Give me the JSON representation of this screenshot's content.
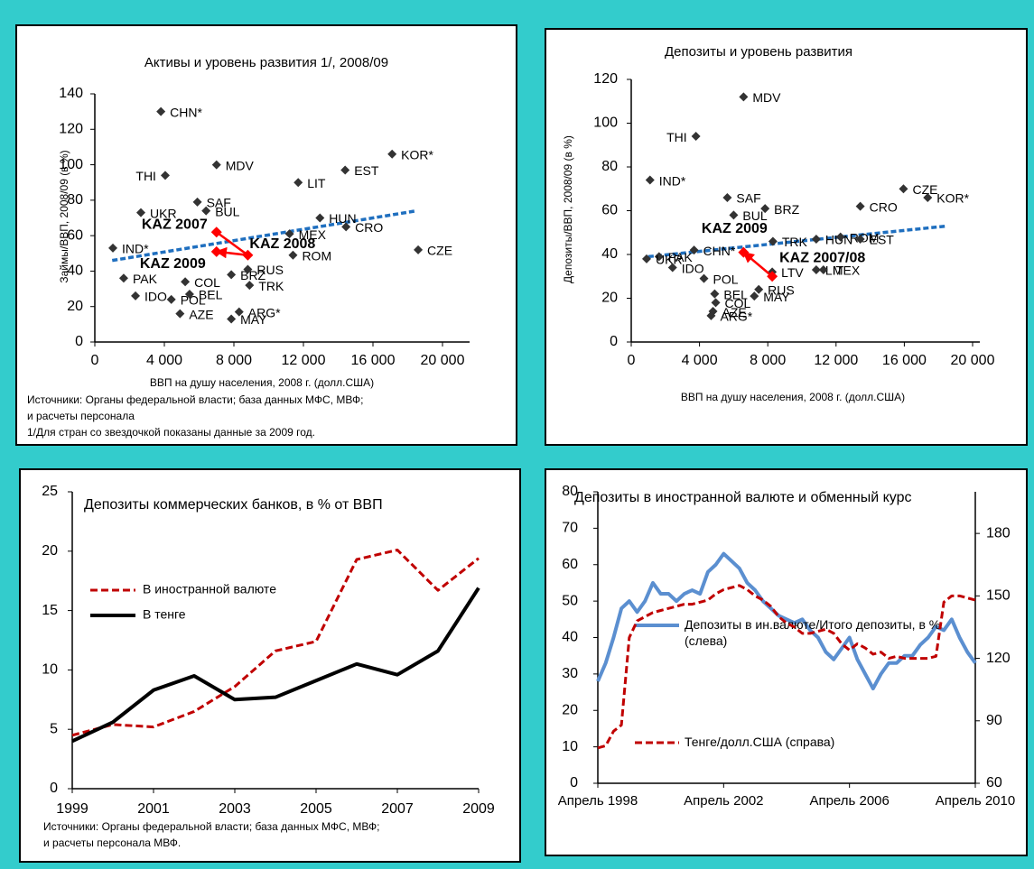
{
  "chart_data": [
    {
      "type": "scatter",
      "title": "Активы и уровень развития 1/, 2008/09",
      "ylabel": "Займы/ВВП, 2008/09 (в %)",
      "xlabel": "ВВП на душу населения, 2008 г. (долл.США)",
      "notes": [
        "Источники: Органы федеральной власти; база данных МФС, МВФ;",
        "и расчеты персонала",
        "1/Для стран со звездочкой показаны данные за 2009 год."
      ],
      "xlim": [
        0,
        20000
      ],
      "xticks": [
        0,
        {
          "value": 4000,
          "label": "4 000"
        },
        {
          "value": 8000,
          "label": "8 000"
        },
        {
          "value": 12000,
          "label": "12 000"
        },
        {
          "value": 16000,
          "label": "16 000"
        },
        {
          "value": 20000,
          "label": "20 000"
        }
      ],
      "ylim": [
        0,
        140
      ],
      "yticks": [
        0,
        20,
        40,
        60,
        80,
        100,
        120,
        140
      ],
      "series": [
        {
          "color": "#333333",
          "point_labels": [
            "CHN*",
            "THI",
            "MDV",
            "SAF",
            "BUL",
            "UKR",
            "LIT",
            "EST",
            "KOR*",
            "HUN",
            "CRO",
            "MEX",
            "ROM",
            "CZE",
            "IND*",
            "PAK",
            "IDO",
            "COL",
            "POL",
            "AZE",
            "BEL",
            "BRZ",
            "RUS",
            "TRK",
            "ARG*",
            "MAY"
          ],
          "x": [
            3800,
            4050,
            7000,
            5900,
            6400,
            2650,
            11700,
            14400,
            17100,
            12950,
            14450,
            11200,
            11400,
            18600,
            1040,
            1660,
            2340,
            5200,
            4400,
            4900,
            5450,
            7850,
            8800,
            8900,
            8300,
            7850
          ],
          "values": [
            130,
            94,
            100,
            79,
            74,
            73,
            90,
            97,
            106,
            70,
            65,
            61,
            49,
            52,
            53,
            36,
            26,
            34,
            24,
            16,
            27,
            38,
            41,
            32,
            17,
            13
          ]
        },
        {
          "color": "#ff0000",
          "point_labels": [
            "KAZ 2007",
            "KAZ 2008",
            "KAZ 2009"
          ],
          "x": [
            7000,
            8800,
            7000
          ],
          "values": [
            62,
            49,
            51
          ]
        }
      ],
      "trend": {
        "color": "#1f6fbf",
        "x": [
          1000,
          18500
        ],
        "values": [
          46,
          74
        ]
      }
    },
    {
      "type": "scatter",
      "title": "Депозиты и уровень развития",
      "ylabel": "Депозиты/ВВП, 2008/09 (в %)",
      "xlabel": "ВВП на душу населения, 2008 г. (долл.США)",
      "xlim": [
        0,
        20000
      ],
      "xticks": [
        0,
        {
          "value": 4000,
          "label": "4 000"
        },
        {
          "value": 8000,
          "label": "8 000"
        },
        {
          "value": 12000,
          "label": "12 000"
        },
        {
          "value": 16000,
          "label": "16 000"
        },
        {
          "value": 20000,
          "label": "20 000"
        }
      ],
      "ylim": [
        0,
        120
      ],
      "yticks": [
        0,
        20,
        40,
        60,
        80,
        100,
        120
      ],
      "series": [
        {
          "color": "#333333",
          "point_labels": [
            "MDV",
            "THI",
            "IND*",
            "SAF",
            "BUL",
            "BRZ",
            "TRK",
            "CRO",
            "CZE",
            "KOR*",
            "HUN",
            "ROM",
            "EST",
            "PAK",
            "CHN*",
            "UKR",
            "IDO",
            "POL",
            "LTV",
            "LIT",
            "MEX",
            "BEL",
            "COL",
            "ARG*",
            "AZE",
            "RUS",
            "MAY"
          ],
          "x": [
            6580,
            3790,
            1100,
            5630,
            6000,
            7840,
            8300,
            13420,
            15950,
            17370,
            10840,
            12260,
            13420,
            1630,
            3680,
            900,
            2420,
            4260,
            8260,
            10840,
            11260,
            4890,
            4950,
            4680,
            4790,
            7470,
            7210
          ],
          "values": [
            112,
            94,
            74,
            66,
            58,
            61,
            46,
            62,
            70,
            66,
            47,
            48,
            47,
            39,
            42,
            38,
            34,
            29,
            32,
            33,
            33,
            22,
            18,
            12,
            14,
            24,
            21
          ]
        },
        {
          "color": "#ff0000",
          "point_labels": [
            "KAZ 2007/08",
            "KAZ 2009"
          ],
          "x": [
            8260,
            6580
          ],
          "values": [
            30,
            41
          ]
        }
      ],
      "trend": {
        "color": "#1f6fbf",
        "x": [
          1000,
          18500
        ],
        "values": [
          39,
          53
        ]
      }
    },
    {
      "type": "line",
      "title": "Депозиты коммерческих банков, в % от ВВП",
      "notes": [
        "Источники: Органы федеральной власти; база данных МФС, МВФ;",
        "и расчеты персонала МВФ."
      ],
      "x": [
        1999,
        2000,
        2001,
        2002,
        2003,
        2004,
        2005,
        2006,
        2007,
        2008,
        2009
      ],
      "xlim": [
        1999,
        2009
      ],
      "xticks": [
        1999,
        2001,
        2003,
        2005,
        2007,
        2009
      ],
      "ylim": [
        0,
        25
      ],
      "yticks": [
        0,
        5,
        10,
        15,
        20,
        25
      ],
      "series": [
        {
          "name": "В иностранной валюте",
          "color": "#c00000",
          "dashed": true,
          "values": [
            4.5,
            5.4,
            5.2,
            6.5,
            8.6,
            11.6,
            12.4,
            19.3,
            20.1,
            16.7,
            19.4
          ]
        },
        {
          "name": "В тенге",
          "color": "#000000",
          "dashed": false,
          "values": [
            4.0,
            5.6,
            8.3,
            9.5,
            7.5,
            7.7,
            9.1,
            10.5,
            9.6,
            11.6,
            16.9
          ]
        }
      ]
    },
    {
      "type": "line",
      "title": "Депозиты в иностранной валюте и обменный курс",
      "x": [
        1998.25,
        1998.5,
        1998.75,
        1999,
        1999.25,
        1999.5,
        1999.75,
        2000,
        2000.25,
        2000.5,
        2000.75,
        2001,
        2001.25,
        2001.5,
        2001.75,
        2002,
        2002.25,
        2002.5,
        2002.75,
        2003,
        2003.25,
        2003.5,
        2003.75,
        2004,
        2004.25,
        2004.5,
        2004.75,
        2005,
        2005.25,
        2005.5,
        2005.75,
        2006,
        2006.25,
        2006.5,
        2006.75,
        2007,
        2007.25,
        2007.5,
        2007.75,
        2008,
        2008.25,
        2008.5,
        2008.75,
        2009,
        2009.25,
        2009.5,
        2009.75,
        2010,
        2010.25
      ],
      "xlim": [
        1998.25,
        2010.25
      ],
      "xticks": [
        {
          "value": 1998.25,
          "label": "Апрель 1998"
        },
        {
          "value": 2002.25,
          "label": "Апрель 2002"
        },
        {
          "value": 2006.25,
          "label": "Апрель 2006"
        },
        {
          "value": 2010.25,
          "label": "Апрель 2010"
        }
      ],
      "ylim": [
        0,
        80
      ],
      "yticks": [
        0,
        10,
        20,
        30,
        40,
        50,
        60,
        70,
        80
      ],
      "y2lim": [
        60,
        200
      ],
      "y2ticks": [
        60,
        90,
        120,
        150,
        180
      ],
      "series": [
        {
          "name": "Депозиты в ин.валюте/Итого депозиты, в % (слева)",
          "color": "#5b8fd0",
          "dashed": false,
          "values": [
            28,
            33,
            40,
            48,
            50,
            47,
            50,
            55,
            52,
            52,
            50,
            52,
            53,
            52,
            58,
            60,
            63,
            61,
            59,
            55,
            53,
            50,
            48,
            46,
            45,
            44,
            45,
            42,
            40,
            36,
            34,
            37,
            40,
            34,
            30,
            26,
            30,
            33,
            33,
            35,
            35,
            38,
            40,
            43,
            42,
            45,
            40,
            36,
            33
          ]
        },
        {
          "name": "Тенге/долл.США (справа)",
          "color": "#c00000",
          "dashed": true,
          "axis": "y2",
          "values": [
            77,
            78,
            85,
            88,
            130,
            138,
            140,
            142,
            143,
            144,
            145,
            146,
            146,
            147,
            148,
            151,
            153,
            154,
            155,
            153,
            150,
            148,
            145,
            140,
            137,
            135,
            132,
            132,
            133,
            134,
            132,
            127,
            124,
            127,
            125,
            122,
            123,
            120,
            121,
            120,
            120,
            120,
            120,
            121,
            147,
            150,
            150,
            149,
            148
          ]
        }
      ]
    }
  ]
}
